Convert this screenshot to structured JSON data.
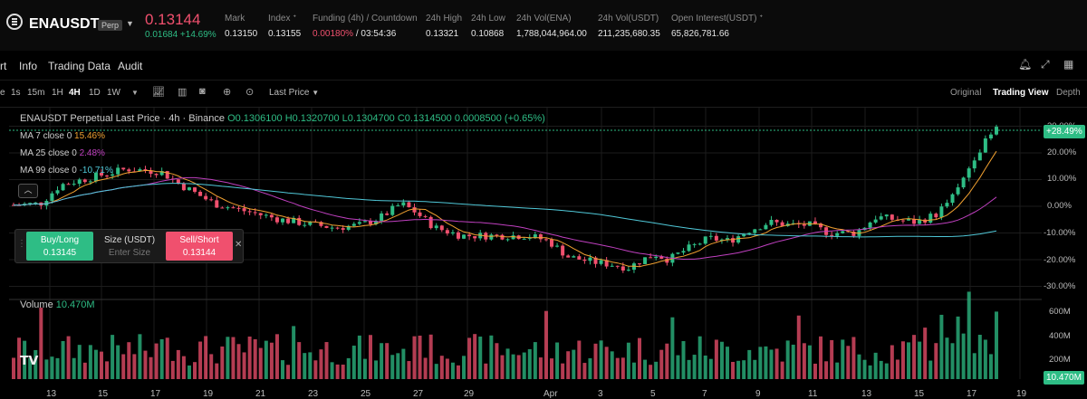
{
  "header": {
    "symbol": "ENAUSDT",
    "badge": "Perp",
    "price": "0.13144",
    "change": "0.01684 +14.69%",
    "stats": [
      {
        "label": "Mark",
        "value": "0.13150"
      },
      {
        "label": "Index ᐩ",
        "value": "0.13155"
      },
      {
        "label": "Funding (4h) / Countdown",
        "value_red": "0.00180%",
        "value": " / 03:54:36"
      },
      {
        "label": "24h High",
        "value": "0.13321"
      },
      {
        "label": "24h Low",
        "value": "0.10868"
      },
      {
        "label": "24h Vol(ENA)",
        "value": "1,788,044,964.00"
      },
      {
        "label": "24h Vol(USDT)",
        "value": "211,235,680.35"
      },
      {
        "label": "Open Interest(USDT) ᐩ",
        "value": "65,826,781.66"
      }
    ]
  },
  "tabs": [
    "rt",
    "Info",
    "Trading Data",
    "Audit"
  ],
  "timeframes": [
    "e",
    "1s",
    "15m",
    "1H",
    "4H",
    "1D",
    "1W"
  ],
  "active_timeframe": "4H",
  "price_type": "Last Price",
  "views": [
    "Original",
    "Trading View",
    "Depth"
  ],
  "active_view": "Trading View",
  "legend": {
    "title": "ENAUSDT Perpetual Last Price · 4h · Binance",
    "ohlc": "O0.1306100 H0.1320700 L0.1304700 C0.1314500 0.0008500 (+0.65%)",
    "ma7_label": "MA 7 close 0",
    "ma7_value": "15.46%",
    "ma25_label": "MA 25 close 0",
    "ma25_value": "2.48%",
    "ma99_label": "MA 99 close 0",
    "ma99_value": "-10.71%"
  },
  "trade": {
    "buy_label": "Buy/Long",
    "buy_price": "0.13145",
    "size_label": "Size (USDT)",
    "size_placeholder": "Enter Size",
    "sell_label": "Sell/Short",
    "sell_price": "0.13144"
  },
  "price_axis": [
    "30.00%",
    "20.00%",
    "10.00%",
    "0.00%",
    "-10.00%",
    "-20.00%",
    "-30.00%"
  ],
  "current_pct_badge": "+28.49%",
  "volume": {
    "label": "Volume",
    "value": "10.470M",
    "axis": [
      "600M",
      "400M",
      "200M"
    ],
    "badge": "10.470M"
  },
  "dates": [
    "13",
    "15",
    "17",
    "19",
    "21",
    "23",
    "25",
    "27",
    "29",
    "Apr",
    "3",
    "5",
    "7",
    "9",
    "11",
    "13",
    "15",
    "17",
    "19"
  ],
  "colors": {
    "up": "#2ebd85",
    "down": "#f0506e",
    "ma7": "#f0a030",
    "ma25": "#c040c0",
    "ma99": "#50c8d8"
  },
  "chart_data": {
    "type": "candlestick",
    "ylim": [
      -30,
      30
    ],
    "anchors_pct": [
      [
        0,
        0.5
      ],
      [
        0.04,
        1
      ],
      [
        0.07,
        8
      ],
      [
        0.12,
        11
      ],
      [
        0.17,
        14
      ],
      [
        0.22,
        13
      ],
      [
        0.25,
        8
      ],
      [
        0.3,
        1
      ],
      [
        0.35,
        -2
      ],
      [
        0.4,
        -5
      ],
      [
        0.45,
        -7
      ],
      [
        0.48,
        -8
      ],
      [
        0.52,
        -7
      ],
      [
        0.55,
        -4
      ],
      [
        0.58,
        1
      ],
      [
        0.6,
        -2
      ],
      [
        0.63,
        -8
      ],
      [
        0.67,
        -11
      ],
      [
        0.72,
        -11
      ],
      [
        0.77,
        -11
      ],
      [
        0.8,
        -13
      ],
      [
        0.83,
        -19
      ],
      [
        0.87,
        -21
      ],
      [
        0.9,
        -22
      ],
      [
        0.92,
        -23
      ],
      [
        0.94,
        -20
      ],
      [
        0.96,
        -18
      ],
      [
        0.98,
        -20
      ],
      [
        1.0,
        -17
      ],
      [
        1.04,
        -12
      ],
      [
        1.07,
        -13
      ],
      [
        1.1,
        -9
      ],
      [
        1.13,
        -6
      ],
      [
        1.16,
        -7
      ],
      [
        1.19,
        -7
      ],
      [
        1.22,
        -10
      ],
      [
        1.26,
        -10
      ],
      [
        1.29,
        -4
      ],
      [
        1.32,
        -5
      ],
      [
        1.35,
        -6
      ],
      [
        1.38,
        -3
      ],
      [
        1.41,
        5
      ],
      [
        1.44,
        20
      ],
      [
        1.47,
        29
      ]
    ]
  }
}
